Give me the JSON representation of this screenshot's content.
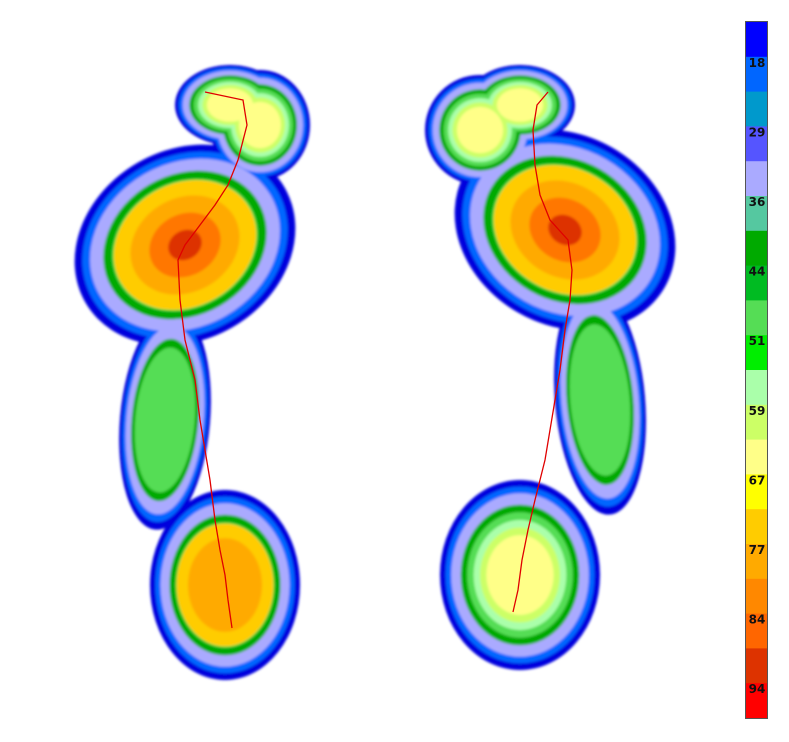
{
  "colorbar": {
    "labels": [
      "18",
      "29",
      "36",
      "44",
      "51",
      "59",
      "67",
      "77",
      "84",
      "94"
    ]
  }
}
